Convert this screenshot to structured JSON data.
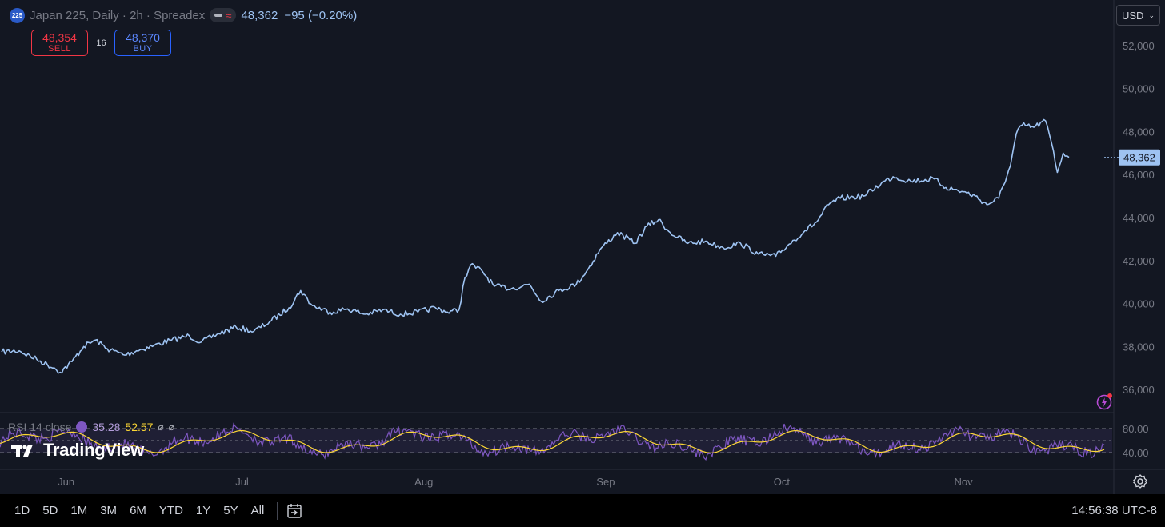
{
  "legend": {
    "badge": "225",
    "title": "Japan 225, Daily · 2h · Spreadex",
    "price": "48,362",
    "change": "−95 (−0.20%)"
  },
  "trade": {
    "sell_price": "48,354",
    "sell_label": "SELL",
    "spread": "16",
    "buy_price": "48,370",
    "buy_label": "BUY"
  },
  "currency": "USD",
  "rsi": {
    "label": "RSI 14 close",
    "rsi_value": "35.28",
    "ma_value": "52.57",
    "extra": "⌀",
    "extra2": "⌀",
    "levels": [
      80,
      60,
      40
    ],
    "axis_labels": [
      "80.00",
      "40.00"
    ]
  },
  "branding": "TradingView",
  "price_tag": "48,362",
  "ranges": [
    "1D",
    "5D",
    "1M",
    "3M",
    "6M",
    "YTD",
    "1Y",
    "5Y",
    "All"
  ],
  "clock": "14:56:38 UTC-8",
  "colors": {
    "background": "#131722",
    "line": "#9ec3f2",
    "rsi_line": "#7e57c2",
    "rsi_ma": "#fdd835",
    "sell": "#f23645",
    "buy": "#2962ff"
  },
  "chart_data": {
    "type": "line",
    "title": "Japan 225, Daily · 2h · Spreadex",
    "ylim": [
      35000,
      53000
    ],
    "yticks": [
      36000,
      38000,
      40000,
      42000,
      44000,
      46000,
      48000,
      50000,
      52000
    ],
    "ytick_labels": [
      "36,000",
      "38,000",
      "40,000",
      "42,000",
      "44,000",
      "46,000",
      "48,000",
      "50,000",
      "52,000"
    ],
    "x_labels": [
      {
        "label": "Jun",
        "x": "2025-06-01"
      },
      {
        "label": "Jul",
        "x": "2025-07-01"
      },
      {
        "label": "Aug",
        "x": "2025-08-01"
      },
      {
        "label": "Sep",
        "x": "2025-09-01"
      },
      {
        "label": "Oct",
        "x": "2025-10-01"
      },
      {
        "label": "Nov",
        "x": "2025-11-01"
      }
    ],
    "xlim": [
      "2025-05-21",
      "2025-11-25"
    ],
    "grid": false,
    "series": [
      {
        "points": [
          [
            "2025-05-21",
            37750
          ],
          [
            "2025-05-24",
            37800
          ],
          [
            "2025-05-27",
            37400
          ],
          [
            "2025-05-30",
            37000
          ],
          [
            "2025-05-31",
            36800
          ],
          [
            "2025-06-02",
            37300
          ],
          [
            "2025-06-04",
            38000
          ],
          [
            "2025-06-06",
            38300
          ],
          [
            "2025-06-08",
            37900
          ],
          [
            "2025-06-11",
            37600
          ],
          [
            "2025-06-13",
            37800
          ],
          [
            "2025-06-16",
            38050
          ],
          [
            "2025-06-19",
            38300
          ],
          [
            "2025-06-22",
            38500
          ],
          [
            "2025-06-24",
            38200
          ],
          [
            "2025-06-27",
            38600
          ],
          [
            "2025-06-30",
            38900
          ],
          [
            "2025-07-03",
            38700
          ],
          [
            "2025-07-06",
            39200
          ],
          [
            "2025-07-09",
            39800
          ],
          [
            "2025-07-11",
            40600
          ],
          [
            "2025-07-13",
            39900
          ],
          [
            "2025-07-16",
            39600
          ],
          [
            "2025-07-19",
            39750
          ],
          [
            "2025-07-22",
            39500
          ],
          [
            "2025-07-25",
            39700
          ],
          [
            "2025-07-28",
            39500
          ],
          [
            "2025-07-31",
            39600
          ],
          [
            "2025-08-03",
            39800
          ],
          [
            "2025-08-05",
            39600
          ],
          [
            "2025-08-07",
            39700
          ],
          [
            "2025-08-08",
            41200
          ],
          [
            "2025-08-09",
            41800
          ],
          [
            "2025-08-11",
            41500
          ],
          [
            "2025-08-13",
            40800
          ],
          [
            "2025-08-16",
            40700
          ],
          [
            "2025-08-19",
            40900
          ],
          [
            "2025-08-21",
            40100
          ],
          [
            "2025-08-24",
            40600
          ],
          [
            "2025-08-27",
            40900
          ],
          [
            "2025-08-29",
            41600
          ],
          [
            "2025-08-31",
            42500
          ],
          [
            "2025-09-03",
            43300
          ],
          [
            "2025-09-06",
            42800
          ],
          [
            "2025-09-08",
            43600
          ],
          [
            "2025-09-10",
            43900
          ],
          [
            "2025-09-12",
            43300
          ],
          [
            "2025-09-15",
            42800
          ],
          [
            "2025-09-18",
            42900
          ],
          [
            "2025-09-21",
            42600
          ],
          [
            "2025-09-24",
            42800
          ],
          [
            "2025-09-27",
            42300
          ],
          [
            "2025-09-30",
            42200
          ],
          [
            "2025-10-02",
            42700
          ],
          [
            "2025-10-05",
            43400
          ],
          [
            "2025-10-07",
            43800
          ],
          [
            "2025-10-09",
            44600
          ],
          [
            "2025-10-11",
            44900
          ],
          [
            "2025-10-15",
            45000
          ],
          [
            "2025-10-18",
            45600
          ],
          [
            "2025-10-20",
            45900
          ],
          [
            "2025-10-23",
            45700
          ],
          [
            "2025-10-27",
            45800
          ],
          [
            "2025-10-29",
            45400
          ],
          [
            "2025-11-01",
            45200
          ],
          [
            "2025-11-03",
            45000
          ],
          [
            "2025-11-05",
            44600
          ],
          [
            "2025-11-07",
            44900
          ],
          [
            "2025-11-09",
            46400
          ],
          [
            "2025-11-10",
            47900
          ],
          [
            "2025-11-11",
            48300
          ],
          [
            "2025-11-13",
            48200
          ],
          [
            "2025-11-15",
            48500
          ],
          [
            "2025-11-16",
            47500
          ],
          [
            "2025-11-17",
            46100
          ],
          [
            "2025-11-18",
            47000
          ],
          [
            "2025-11-19",
            46800
          ]
        ]
      }
    ]
  }
}
